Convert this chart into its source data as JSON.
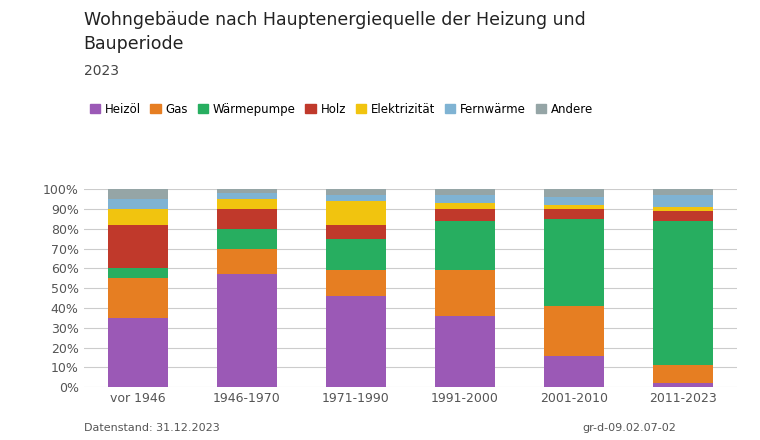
{
  "title_line1": "Wohngebäude nach Hauptenergiequelle der Heizung und",
  "title_line2": "Bauperiode",
  "subtitle": "2023",
  "categories": [
    "vor 1946",
    "1946-1970",
    "1971-1990",
    "1991-2000",
    "2001-2010",
    "2011-2023"
  ],
  "legend_labels": [
    "Heizöl",
    "Gas",
    "Wärmepumpe",
    "Holz",
    "Elektrizität",
    "Fernwärme",
    "Andere"
  ],
  "colors": [
    "#9b59b6",
    "#e67e22",
    "#27ae60",
    "#c0392b",
    "#f1c40f",
    "#7fb3d3",
    "#95a5a6"
  ],
  "data": {
    "Heizöl": [
      35,
      57,
      46,
      36,
      16,
      2
    ],
    "Gas": [
      20,
      13,
      13,
      23,
      25,
      9
    ],
    "Wärmepumpe": [
      5,
      10,
      16,
      25,
      44,
      73
    ],
    "Holz": [
      22,
      10,
      7,
      6,
      5,
      5
    ],
    "Elektrizität": [
      8,
      5,
      12,
      3,
      2,
      2
    ],
    "Fernwärme": [
      5,
      3,
      3,
      4,
      4,
      6
    ],
    "Andere": [
      5,
      2,
      3,
      3,
      4,
      3
    ]
  },
  "footer_left": "Datenstand: 31.12.2023",
  "footer_right": "gr-d-09.02.07-02",
  "ylim": [
    0,
    100
  ],
  "yticks": [
    0,
    10,
    20,
    30,
    40,
    50,
    60,
    70,
    80,
    90,
    100
  ],
  "background_color": "#ffffff",
  "grid_color": "#cccccc"
}
